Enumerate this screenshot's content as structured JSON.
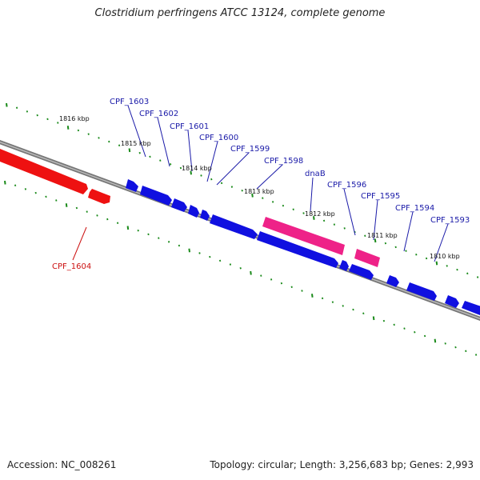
{
  "title": "Clostridium perfringens ATCC 13124, complete genome",
  "footer": {
    "accession": "Accession: NC_008261",
    "summary": "Topology: circular; Length: 3,256,683 bp; Genes: 2,993"
  },
  "colors": {
    "backbone_outer": "#777777",
    "backbone_inner": "#bbbbbb",
    "tick": "#1a8a1a",
    "gene_forward": "#1010e0",
    "gene_reverse": "#ee1111",
    "gene_highlight": "#ee2288",
    "label_forward": "#1a1aa8",
    "label_reverse": "#cc1111",
    "kbp_label": "#111111"
  },
  "kbp_labels": [
    "1816 kbp",
    "1815 kbp",
    "1814 kbp",
    "1813 kbp",
    "1812 kbp",
    "1811 kbp",
    "1810 kbp"
  ],
  "gene_labels": [
    {
      "name": "CPF_1603",
      "strand": "forward"
    },
    {
      "name": "CPF_1602",
      "strand": "forward"
    },
    {
      "name": "CPF_1601",
      "strand": "forward"
    },
    {
      "name": "CPF_1600",
      "strand": "forward"
    },
    {
      "name": "CPF_1599",
      "strand": "forward"
    },
    {
      "name": "CPF_1598",
      "strand": "forward"
    },
    {
      "name": "dnaB",
      "strand": "forward"
    },
    {
      "name": "CPF_1596",
      "strand": "forward"
    },
    {
      "name": "CPF_1595",
      "strand": "forward"
    },
    {
      "name": "CPF_1594",
      "strand": "forward"
    },
    {
      "name": "CPF_1593",
      "strand": "forward"
    },
    {
      "name": "CPF_1604",
      "strand": "reverse"
    }
  ]
}
